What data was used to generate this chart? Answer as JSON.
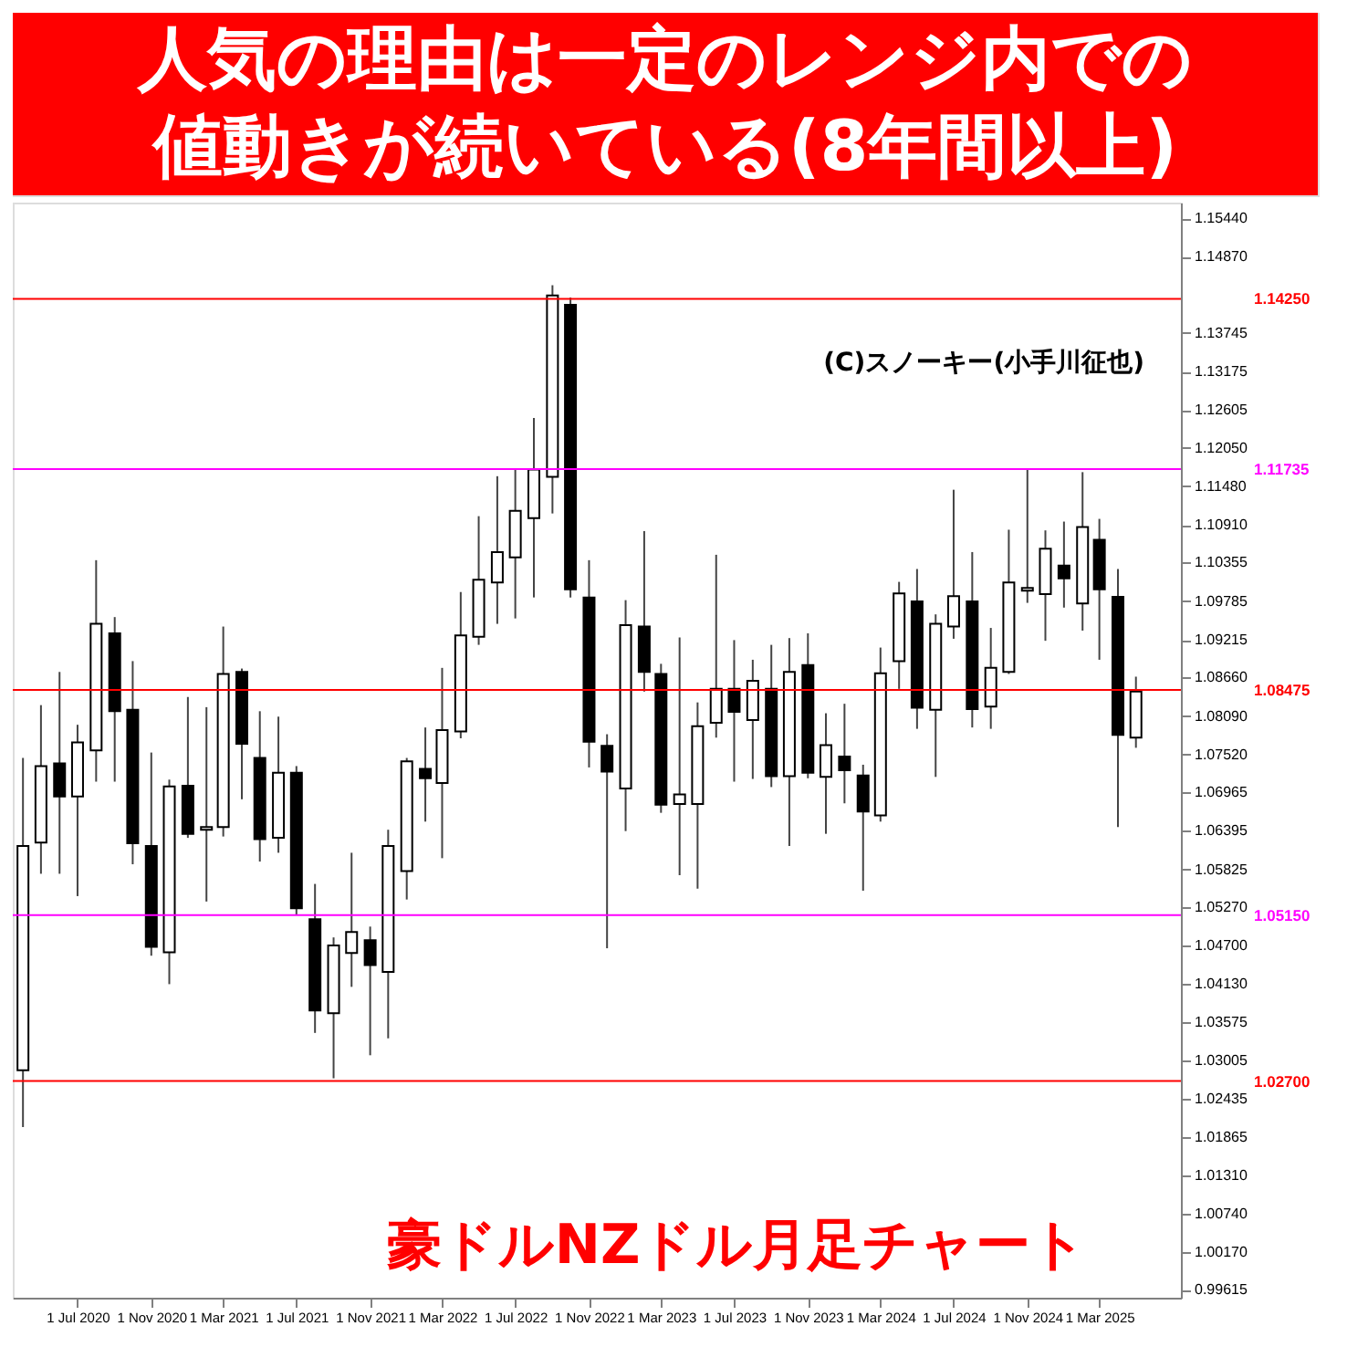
{
  "chart_data": {
    "type": "candlestick",
    "title": "人気の理由は一定のレンジ内での値動きが続いている(8年間以上)",
    "annotations": [
      "豪ドルNZドル月足チャート",
      "(C)スノーキー(小手川征也)"
    ],
    "x": [
      "2020-04",
      "2020-05",
      "2020-06",
      "2020-07",
      "2020-08",
      "2020-09",
      "2020-10",
      "2020-11",
      "2020-12",
      "2021-01",
      "2021-02",
      "2021-03",
      "2021-04",
      "2021-05",
      "2021-06",
      "2021-07",
      "2021-08",
      "2021-09",
      "2021-10",
      "2021-11",
      "2021-12",
      "2022-01",
      "2022-02",
      "2022-03",
      "2022-04",
      "2022-05",
      "2022-06",
      "2022-07",
      "2022-08",
      "2022-09",
      "2022-10",
      "2022-11",
      "2022-12",
      "2023-01",
      "2023-02",
      "2023-03",
      "2023-04",
      "2023-05",
      "2023-06",
      "2023-07",
      "2023-08",
      "2023-09",
      "2023-10",
      "2023-11",
      "2023-12",
      "2024-01",
      "2024-02",
      "2024-03",
      "2024-04",
      "2024-05",
      "2024-06",
      "2024-07",
      "2024-08",
      "2024-09",
      "2024-10",
      "2024-11",
      "2024-12",
      "2025-01",
      "2025-02",
      "2025-03",
      "2025-04",
      "2025-05"
    ],
    "ohlc": [
      [
        1.0286,
        1.0747,
        1.0202,
        1.0617
      ],
      [
        1.0622,
        1.0825,
        1.0576,
        1.0735
      ],
      [
        1.0739,
        1.0874,
        1.0576,
        1.069
      ],
      [
        1.069,
        1.0796,
        1.0543,
        1.077
      ],
      [
        1.0758,
        1.1039,
        1.0712,
        1.0945
      ],
      [
        1.0931,
        1.0955,
        1.0712,
        1.0816
      ],
      [
        1.0818,
        1.089,
        1.059,
        1.0621
      ],
      [
        1.0617,
        1.0755,
        1.0455,
        1.0468
      ],
      [
        1.046,
        1.0715,
        1.0413,
        1.0705
      ],
      [
        1.0706,
        1.0837,
        1.0629,
        1.0635
      ],
      [
        1.0641,
        1.0822,
        1.0535,
        1.0645
      ],
      [
        1.0645,
        1.0941,
        1.0631,
        1.0871
      ],
      [
        1.0874,
        1.0879,
        1.0686,
        1.0768
      ],
      [
        1.0747,
        1.0816,
        1.0594,
        1.0627
      ],
      [
        1.0629,
        1.0808,
        1.0607,
        1.0725
      ],
      [
        1.0725,
        1.0735,
        1.0515,
        1.0525
      ],
      [
        1.0509,
        1.0561,
        1.0341,
        1.0374
      ],
      [
        1.037,
        1.0482,
        1.0274,
        1.047
      ],
      [
        1.0459,
        1.0607,
        1.0409,
        1.049
      ],
      [
        1.0478,
        1.0498,
        1.0308,
        1.0441
      ],
      [
        1.0431,
        1.0641,
        1.0333,
        1.0617
      ],
      [
        1.058,
        1.0747,
        1.0538,
        1.0742
      ],
      [
        1.0731,
        1.0792,
        1.0653,
        1.0717
      ],
      [
        1.071,
        1.088,
        1.0599,
        1.0788
      ],
      [
        1.0786,
        1.0992,
        1.0776,
        1.0928
      ],
      [
        1.0926,
        1.1104,
        1.0914,
        1.101
      ],
      [
        1.1006,
        1.1163,
        1.0945,
        1.1051
      ],
      [
        1.1043,
        1.1173,
        1.0953,
        1.1112
      ],
      [
        1.1101,
        1.1249,
        1.0984,
        1.1173
      ],
      [
        1.1162,
        1.1445,
        1.1108,
        1.143
      ],
      [
        1.1416,
        1.1427,
        1.0984,
        1.0996
      ],
      [
        1.0984,
        1.1039,
        1.0733,
        1.0771
      ],
      [
        1.0765,
        1.0782,
        1.0466,
        1.0727
      ],
      [
        1.0702,
        1.098,
        1.0639,
        1.0943
      ],
      [
        1.0941,
        1.1082,
        1.0845,
        1.0874
      ],
      [
        1.0871,
        1.0886,
        1.0666,
        1.0678
      ],
      [
        1.0679,
        1.0925,
        1.0574,
        1.0693
      ],
      [
        1.0679,
        1.0829,
        1.0554,
        1.0794
      ],
      [
        1.0799,
        1.1047,
        1.0777,
        1.0849
      ],
      [
        1.0849,
        1.0921,
        1.0712,
        1.0815
      ],
      [
        1.0803,
        1.0892,
        1.0716,
        1.0861
      ],
      [
        1.0849,
        1.0914,
        1.0704,
        1.072
      ],
      [
        1.072,
        1.0924,
        1.0617,
        1.0874
      ],
      [
        1.0884,
        1.0931,
        1.0717,
        1.0725
      ],
      [
        1.0719,
        1.0813,
        1.0635,
        1.0766
      ],
      [
        1.0749,
        1.0827,
        1.068,
        1.0729
      ],
      [
        1.0721,
        1.0737,
        1.0551,
        1.0668
      ],
      [
        1.0662,
        1.091,
        1.0653,
        1.0872
      ],
      [
        1.089,
        1.1007,
        1.0849,
        1.099
      ],
      [
        1.0978,
        1.1026,
        1.079,
        1.0821
      ],
      [
        1.0818,
        1.0959,
        1.0719,
        1.0945
      ],
      [
        1.0941,
        1.1143,
        1.0923,
        1.0986
      ],
      [
        1.0978,
        1.1051,
        1.0792,
        1.0819
      ],
      [
        1.0823,
        1.0939,
        1.079,
        1.088
      ],
      [
        1.0874,
        1.1084,
        1.0871,
        1.1006
      ],
      [
        1.0994,
        1.1173,
        1.0976,
        1.0998
      ],
      [
        1.0989,
        1.1083,
        1.092,
        1.1056
      ],
      [
        1.1031,
        1.1096,
        1.0969,
        1.1012
      ],
      [
        1.0975,
        1.1169,
        1.0935,
        1.1088
      ],
      [
        1.1069,
        1.11,
        1.0892,
        1.0996
      ],
      [
        1.0985,
        1.1026,
        1.0645,
        1.0781
      ],
      [
        1.0777,
        1.0867,
        1.0762,
        1.0845
      ]
    ],
    "xlim": [
      "2020-03-15",
      "2025-07-15"
    ],
    "xticks": [
      {
        "value": "2020-07",
        "label": "1 Jul 2020"
      },
      {
        "value": "2020-11",
        "label": "1 Nov 2020"
      },
      {
        "value": "2021-03",
        "label": "1 Mar 2021"
      },
      {
        "value": "2021-07",
        "label": "1 Jul 2021"
      },
      {
        "value": "2021-11",
        "label": "1 Nov 2021"
      },
      {
        "value": "2022-03",
        "label": "1 Mar 2022"
      },
      {
        "value": "2022-07",
        "label": "1 Jul 2022"
      },
      {
        "value": "2022-11",
        "label": "1 Nov 2022"
      },
      {
        "value": "2023-03",
        "label": "1 Mar 2023"
      },
      {
        "value": "2023-07",
        "label": "1 Jul 2023"
      },
      {
        "value": "2023-11",
        "label": "1 Nov 2023"
      },
      {
        "value": "2024-03",
        "label": "1 Mar 2024"
      },
      {
        "value": "2024-07",
        "label": "1 Jul 2024"
      },
      {
        "value": "2024-11",
        "label": "1 Nov 2024"
      },
      {
        "value": "2025-03",
        "label": "1 Mar 2025"
      }
    ],
    "ylim": [
      0.995,
      1.1567
    ],
    "yticks": [
      {
        "value": 1.1544,
        "label": "1.15440"
      },
      {
        "value": 1.1487,
        "label": "1.14870"
      },
      {
        "value": 1.13745,
        "label": "1.13745"
      },
      {
        "value": 1.13175,
        "label": "1.13175"
      },
      {
        "value": 1.12605,
        "label": "1.12605"
      },
      {
        "value": 1.1205,
        "label": "1.12050"
      },
      {
        "value": 1.1148,
        "label": "1.11480"
      },
      {
        "value": 1.1091,
        "label": "1.10910"
      },
      {
        "value": 1.10355,
        "label": "1.10355"
      },
      {
        "value": 1.09785,
        "label": "1.09785"
      },
      {
        "value": 1.09215,
        "label": "1.09215"
      },
      {
        "value": 1.0866,
        "label": "1.08660"
      },
      {
        "value": 1.0809,
        "label": "1.08090"
      },
      {
        "value": 1.0752,
        "label": "1.07520"
      },
      {
        "value": 1.06965,
        "label": "1.06965"
      },
      {
        "value": 1.06395,
        "label": "1.06395"
      },
      {
        "value": 1.05825,
        "label": "1.05825"
      },
      {
        "value": 1.0527,
        "label": "1.05270"
      },
      {
        "value": 1.047,
        "label": "1.04700"
      },
      {
        "value": 1.0413,
        "label": "1.04130"
      },
      {
        "value": 1.03575,
        "label": "1.03575"
      },
      {
        "value": 1.03005,
        "label": "1.03005"
      },
      {
        "value": 1.02435,
        "label": "1.02435"
      },
      {
        "value": 1.01865,
        "label": "1.01865"
      },
      {
        "value": 1.0131,
        "label": "1.01310"
      },
      {
        "value": 1.0074,
        "label": "1.00740"
      },
      {
        "value": 1.0017,
        "label": "1.00170"
      },
      {
        "value": 0.99615,
        "label": "0.99615"
      }
    ],
    "ref_lines": [
      {
        "axis": "y",
        "value": 1.1425,
        "label": "1.14250",
        "color": "#ff0000"
      },
      {
        "axis": "y",
        "value": 1.11735,
        "label": "1.11735",
        "color": "#ff00ff"
      },
      {
        "axis": "y",
        "value": 1.08475,
        "label": "1.08475",
        "color": "#ff0000"
      },
      {
        "axis": "y",
        "value": 1.0515,
        "label": "1.05150",
        "color": "#ff00ff"
      },
      {
        "axis": "y",
        "value": 1.027,
        "label": "1.02700",
        "color": "#ff0000"
      }
    ]
  }
}
